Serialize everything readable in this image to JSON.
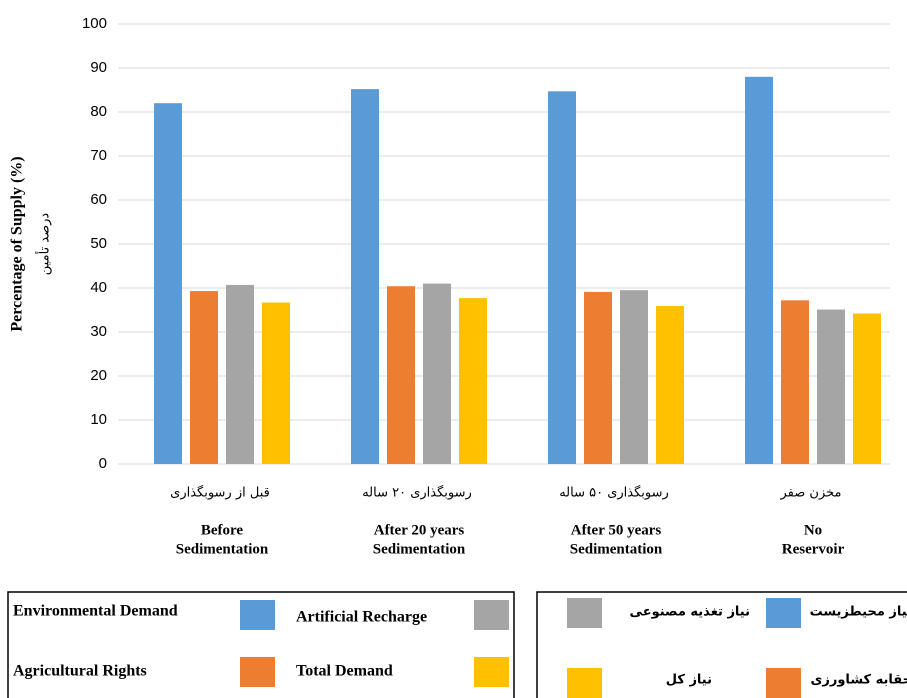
{
  "chart_data": {
    "type": "bar",
    "categories": [
      "قبل از رسوبگذاری",
      "رسوبگذاری ۲۰ ساله",
      "رسوبگذاری ۵۰ ساله",
      "مخزن صفر"
    ],
    "category_labels": [
      [
        "Before",
        "Sedimentation"
      ],
      [
        "After 20 years",
        "Sedimentation"
      ],
      [
        "After 50 years",
        "Sedimentation"
      ],
      [
        "No",
        "Reservoir"
      ]
    ],
    "ylabel": "Percentage of Supply (%)",
    "ylabel_fa": "درصد تأمین",
    "ylim": [
      0,
      100
    ],
    "yticks": [
      0,
      10,
      20,
      30,
      40,
      50,
      60,
      70,
      80,
      90,
      100
    ],
    "grid": true,
    "series": [
      {
        "name": "Environmental Demand",
        "name_fa": "نیاز محیطزیست",
        "color": "#5b9bd5",
        "values": [
          82,
          85.2,
          84.7,
          88
        ]
      },
      {
        "name": "Agricultural Rights",
        "name_fa": "حقابه کشاورزی",
        "color": "#ed7d31",
        "values": [
          39.3,
          40.4,
          39.1,
          37.2
        ]
      },
      {
        "name": "Artificial Recharge",
        "name_fa": "نیاز تغذیه مصنوعی",
        "color": "#a5a5a5",
        "values": [
          40.7,
          41,
          39.5,
          35.1
        ]
      },
      {
        "name": "Total Demand",
        "name_fa": "نیاز کل",
        "color": "#ffc000",
        "values": [
          36.7,
          37.7,
          35.9,
          34.2
        ]
      }
    ]
  }
}
